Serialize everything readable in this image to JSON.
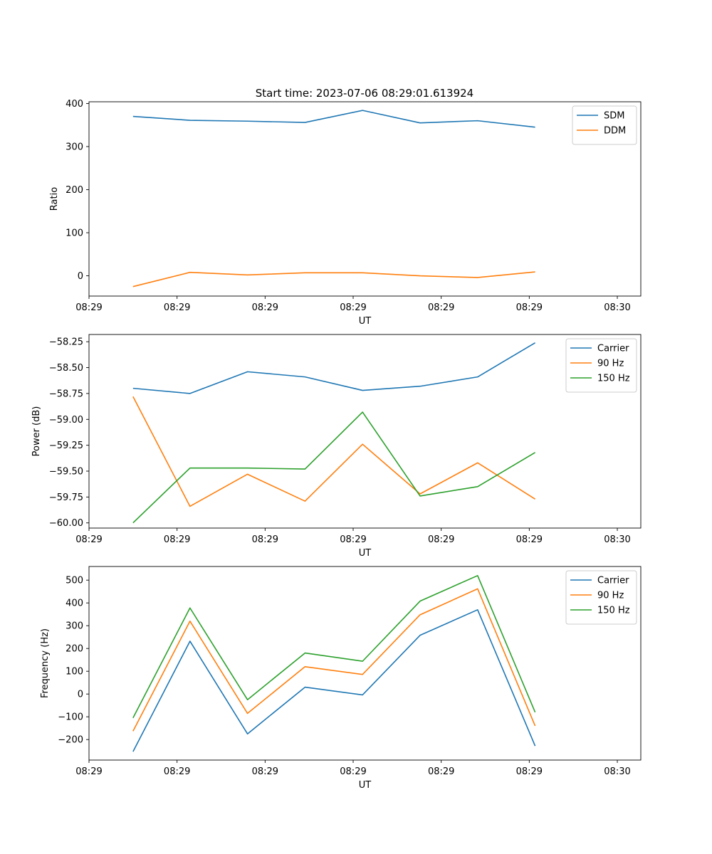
{
  "title": "Start time: 2023-07-06 08:29:01.613924",
  "colors": {
    "blue": "#1f77b4",
    "orange": "#ff7f0e",
    "green": "#2ca02c",
    "axis": "#000000",
    "legend_border": "#cccccc"
  },
  "chart_data": [
    {
      "type": "line",
      "title": "Start time: 2023-07-06 08:29:01.613924",
      "xlabel": "UT",
      "ylabel": "Ratio",
      "xlim": [
        0,
        9.4
      ],
      "xticks": [
        0,
        1.5,
        3,
        4.5,
        6,
        7.5,
        9
      ],
      "xtick_labels": [
        "08:29",
        "08:29",
        "08:29",
        "08:29",
        "08:29",
        "08:29",
        "08:30"
      ],
      "ylim": [
        -47,
        404
      ],
      "yticks": [
        0,
        100,
        200,
        300,
        400
      ],
      "ytick_labels": [
        "0",
        "100",
        "200",
        "300",
        "400"
      ],
      "x": [
        0.75,
        1.72,
        2.7,
        3.68,
        4.66,
        5.64,
        6.62,
        7.6
      ],
      "series": [
        {
          "name": "SDM",
          "color": "#1f77b4",
          "values": [
            370,
            361,
            359,
            356,
            384,
            355,
            360,
            345
          ]
        },
        {
          "name": "DDM",
          "color": "#ff7f0e",
          "values": [
            -25,
            8,
            2,
            7,
            7,
            0,
            -4,
            9
          ]
        }
      ],
      "legend": "top-right",
      "grid": false
    },
    {
      "type": "line",
      "title": "",
      "xlabel": "UT",
      "ylabel": "Power (dB)",
      "xlim": [
        0,
        9.4
      ],
      "xticks": [
        0,
        1.5,
        3,
        4.5,
        6,
        7.5,
        9
      ],
      "xtick_labels": [
        "08:29",
        "08:29",
        "08:29",
        "08:29",
        "08:29",
        "08:29",
        "08:30"
      ],
      "ylim": [
        -60.05,
        -58.18
      ],
      "yticks": [
        -60.0,
        -59.75,
        -59.5,
        -59.25,
        -59.0,
        -58.75,
        -58.5,
        -58.25
      ],
      "ytick_labels": [
        "−60.00",
        "−59.75",
        "−59.50",
        "−59.25",
        "−59.00",
        "−58.75",
        "−58.50",
        "−58.25"
      ],
      "x": [
        0.75,
        1.72,
        2.7,
        3.68,
        4.66,
        5.64,
        6.62,
        7.6
      ],
      "series": [
        {
          "name": "Carrier",
          "color": "#1f77b4",
          "values": [
            -58.7,
            -58.75,
            -58.54,
            -58.59,
            -58.72,
            -58.68,
            -58.59,
            -58.26
          ]
        },
        {
          "name": "90 Hz",
          "color": "#ff7f0e",
          "values": [
            -58.78,
            -59.84,
            -59.53,
            -59.79,
            -59.24,
            -59.72,
            -59.42,
            -59.77
          ]
        },
        {
          "name": "150 Hz",
          "color": "#2ca02c",
          "values": [
            -60.0,
            -59.47,
            -59.47,
            -59.48,
            -58.93,
            -59.74,
            -59.65,
            -59.32
          ]
        }
      ],
      "legend": "top-right",
      "grid": false
    },
    {
      "type": "line",
      "title": "",
      "xlabel": "UT",
      "ylabel": "Frequency (Hz)",
      "xlim": [
        0,
        9.4
      ],
      "xticks": [
        0,
        1.5,
        3,
        4.5,
        6,
        7.5,
        9
      ],
      "xtick_labels": [
        "08:29",
        "08:29",
        "08:29",
        "08:29",
        "08:29",
        "08:29",
        "08:30"
      ],
      "ylim": [
        -290,
        560
      ],
      "yticks": [
        -200,
        -100,
        0,
        100,
        200,
        300,
        400,
        500
      ],
      "ytick_labels": [
        "−200",
        "−100",
        "0",
        "100",
        "200",
        "300",
        "400",
        "500"
      ],
      "x": [
        0.75,
        1.72,
        2.7,
        3.68,
        4.66,
        5.64,
        6.62,
        7.6
      ],
      "series": [
        {
          "name": "Carrier",
          "color": "#1f77b4",
          "values": [
            -253,
            232,
            -175,
            30,
            -4,
            258,
            370,
            -228
          ]
        },
        {
          "name": "90 Hz",
          "color": "#ff7f0e",
          "values": [
            -163,
            320,
            -85,
            120,
            86,
            348,
            462,
            -140
          ]
        },
        {
          "name": "150 Hz",
          "color": "#2ca02c",
          "values": [
            -105,
            378,
            -25,
            180,
            144,
            408,
            520,
            -80
          ]
        }
      ],
      "legend": "top-right",
      "grid": false
    }
  ]
}
